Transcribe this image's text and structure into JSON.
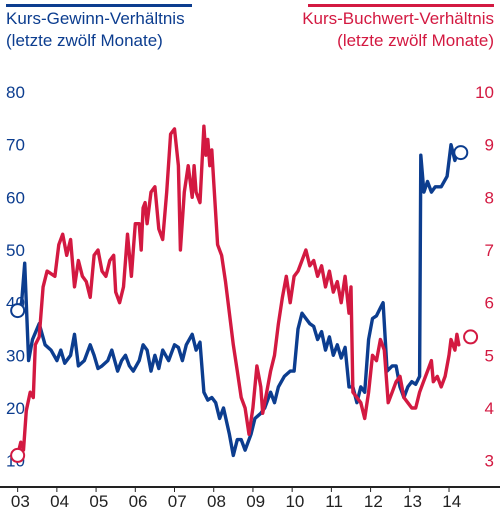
{
  "chart_data": {
    "type": "line",
    "left_title": [
      "Kurs-Gewinn-Verhältnis",
      "(letzte zwölf Monate)"
    ],
    "right_title": [
      "Kurs-Buchwert-Verhältnis",
      "(letzte zwölf Monate)"
    ],
    "colors": {
      "left": "#0c3d8f",
      "right": "#d31941",
      "axis": "#222222"
    },
    "x_tick_labels": [
      "03",
      "04",
      "05",
      "06",
      "07",
      "08",
      "09",
      "10",
      "11",
      "12",
      "13",
      "14"
    ],
    "left_axis": {
      "ticks": [
        10,
        20,
        30,
        40,
        50,
        60,
        70,
        80
      ],
      "ylim": [
        5,
        80
      ]
    },
    "right_axis": {
      "ticks": [
        3,
        4,
        5,
        6,
        7,
        8,
        9,
        10
      ],
      "ylim": [
        2.5,
        10
      ]
    },
    "xlim": [
      2002.55,
      2015.3
    ],
    "series": [
      {
        "name": "Kurs-Gewinn-Verhältnis",
        "axis": "left",
        "points": [
          [
            2003.0,
            38.5
          ],
          [
            2003.1,
            40
          ],
          [
            2003.18,
            47.5
          ],
          [
            2003.28,
            29
          ],
          [
            2003.38,
            33
          ],
          [
            2003.55,
            36
          ],
          [
            2003.7,
            32
          ],
          [
            2003.85,
            31
          ],
          [
            2004.0,
            29
          ],
          [
            2004.1,
            31
          ],
          [
            2004.2,
            28.5
          ],
          [
            2004.35,
            30
          ],
          [
            2004.45,
            34
          ],
          [
            2004.55,
            28
          ],
          [
            2004.7,
            29
          ],
          [
            2004.85,
            32
          ],
          [
            2004.95,
            30
          ],
          [
            2005.05,
            27.5
          ],
          [
            2005.15,
            28
          ],
          [
            2005.3,
            29
          ],
          [
            2005.4,
            31
          ],
          [
            2005.55,
            27
          ],
          [
            2005.65,
            29
          ],
          [
            2005.75,
            30
          ],
          [
            2005.85,
            28
          ],
          [
            2005.95,
            27
          ],
          [
            2006.1,
            29
          ],
          [
            2006.2,
            32
          ],
          [
            2006.3,
            31
          ],
          [
            2006.4,
            27
          ],
          [
            2006.5,
            30
          ],
          [
            2006.6,
            27.5
          ],
          [
            2006.7,
            31
          ],
          [
            2006.85,
            29
          ],
          [
            2007.0,
            32
          ],
          [
            2007.1,
            31.5
          ],
          [
            2007.2,
            29
          ],
          [
            2007.3,
            32
          ],
          [
            2007.45,
            34
          ],
          [
            2007.55,
            31
          ],
          [
            2007.65,
            32.5
          ],
          [
            2007.75,
            23
          ],
          [
            2007.85,
            21.5
          ],
          [
            2007.95,
            22
          ],
          [
            2008.05,
            21
          ],
          [
            2008.15,
            18
          ],
          [
            2008.25,
            20
          ],
          [
            2008.4,
            15
          ],
          [
            2008.5,
            11
          ],
          [
            2008.6,
            14
          ],
          [
            2008.7,
            14
          ],
          [
            2008.8,
            12
          ],
          [
            2008.95,
            15
          ],
          [
            2009.05,
            18
          ],
          [
            2009.2,
            19
          ],
          [
            2009.3,
            20
          ],
          [
            2009.45,
            23
          ],
          [
            2009.55,
            21
          ],
          [
            2009.65,
            24
          ],
          [
            2009.8,
            26
          ],
          [
            2009.95,
            27
          ],
          [
            2010.05,
            27
          ],
          [
            2010.15,
            35
          ],
          [
            2010.25,
            38
          ],
          [
            2010.35,
            37
          ],
          [
            2010.45,
            36
          ],
          [
            2010.55,
            35.5
          ],
          [
            2010.65,
            33
          ],
          [
            2010.75,
            34.5
          ],
          [
            2010.85,
            31
          ],
          [
            2010.95,
            33.5
          ],
          [
            2011.05,
            30
          ],
          [
            2011.15,
            32
          ],
          [
            2011.25,
            29.5
          ],
          [
            2011.35,
            31.5
          ],
          [
            2011.45,
            24
          ],
          [
            2011.55,
            24
          ],
          [
            2011.65,
            21
          ],
          [
            2011.75,
            24
          ],
          [
            2011.85,
            23
          ],
          [
            2011.95,
            33
          ],
          [
            2012.05,
            37
          ],
          [
            2012.15,
            37.5
          ],
          [
            2012.25,
            39
          ],
          [
            2012.32,
            40
          ],
          [
            2012.42,
            27
          ],
          [
            2012.55,
            28
          ],
          [
            2012.65,
            28
          ],
          [
            2012.75,
            24
          ],
          [
            2012.85,
            22
          ],
          [
            2012.95,
            24
          ],
          [
            2013.05,
            25
          ],
          [
            2013.15,
            24.5
          ],
          [
            2013.25,
            26
          ],
          [
            2013.28,
            68
          ],
          [
            2013.36,
            61
          ],
          [
            2013.45,
            63
          ],
          [
            2013.55,
            61
          ],
          [
            2013.65,
            62
          ],
          [
            2013.8,
            62
          ],
          [
            2013.95,
            64
          ],
          [
            2014.05,
            70
          ],
          [
            2014.15,
            67
          ],
          [
            2014.2,
            68.5
          ],
          [
            2014.25,
            68
          ]
        ],
        "end_marker": [
          2014.3,
          68.5
        ],
        "start_marker": [
          2003.0,
          38.5
        ]
      },
      {
        "name": "Kurs-Buchwert-Verhältnis",
        "axis": "right",
        "points": [
          [
            2003.0,
            3.1
          ],
          [
            2003.08,
            3.35
          ],
          [
            2003.15,
            3.2
          ],
          [
            2003.22,
            3.95
          ],
          [
            2003.32,
            4.3
          ],
          [
            2003.4,
            4.2
          ],
          [
            2003.45,
            5.2
          ],
          [
            2003.55,
            5.35
          ],
          [
            2003.65,
            6.3
          ],
          [
            2003.75,
            6.6
          ],
          [
            2003.85,
            6.55
          ],
          [
            2003.95,
            6.5
          ],
          [
            2004.05,
            7.1
          ],
          [
            2004.15,
            7.3
          ],
          [
            2004.25,
            6.9
          ],
          [
            2004.35,
            7.2
          ],
          [
            2004.45,
            6.3
          ],
          [
            2004.55,
            6.8
          ],
          [
            2004.65,
            6.5
          ],
          [
            2004.75,
            6.4
          ],
          [
            2004.85,
            6.1
          ],
          [
            2004.95,
            6.9
          ],
          [
            2005.05,
            7.0
          ],
          [
            2005.15,
            6.6
          ],
          [
            2005.25,
            6.5
          ],
          [
            2005.35,
            6.8
          ],
          [
            2005.45,
            6.9
          ],
          [
            2005.5,
            6.2
          ],
          [
            2005.6,
            6.0
          ],
          [
            2005.7,
            6.3
          ],
          [
            2005.8,
            7.3
          ],
          [
            2005.9,
            6.5
          ],
          [
            2005.95,
            7.0
          ],
          [
            2006.0,
            7.5
          ],
          [
            2006.1,
            7.5
          ],
          [
            2006.15,
            7.0
          ],
          [
            2006.2,
            7.8
          ],
          [
            2006.25,
            7.9
          ],
          [
            2006.3,
            7.5
          ],
          [
            2006.4,
            8.1
          ],
          [
            2006.5,
            8.2
          ],
          [
            2006.6,
            7.4
          ],
          [
            2006.7,
            7.2
          ],
          [
            2006.8,
            8.1
          ],
          [
            2006.9,
            9.2
          ],
          [
            2007.0,
            9.3
          ],
          [
            2007.1,
            8.6
          ],
          [
            2007.15,
            7.0
          ],
          [
            2007.25,
            8.1
          ],
          [
            2007.35,
            8.6
          ],
          [
            2007.45,
            8.0
          ],
          [
            2007.5,
            8.6
          ],
          [
            2007.55,
            8.1
          ],
          [
            2007.65,
            7.9
          ],
          [
            2007.75,
            9.35
          ],
          [
            2007.8,
            8.8
          ],
          [
            2007.85,
            9.1
          ],
          [
            2007.9,
            8.6
          ],
          [
            2007.95,
            8.9
          ],
          [
            2008.0,
            8.3
          ],
          [
            2008.1,
            7.1
          ],
          [
            2008.2,
            6.9
          ],
          [
            2008.3,
            6.4
          ],
          [
            2008.4,
            5.8
          ],
          [
            2008.5,
            5.2
          ],
          [
            2008.6,
            4.7
          ],
          [
            2008.7,
            4.2
          ],
          [
            2008.8,
            4.0
          ],
          [
            2008.9,
            3.5
          ],
          [
            2009.0,
            4.0
          ],
          [
            2009.1,
            4.8
          ],
          [
            2009.2,
            4.4
          ],
          [
            2009.25,
            3.9
          ],
          [
            2009.35,
            4.3
          ],
          [
            2009.45,
            4.7
          ],
          [
            2009.55,
            5.0
          ],
          [
            2009.65,
            5.6
          ],
          [
            2009.75,
            6.1
          ],
          [
            2009.85,
            6.5
          ],
          [
            2009.95,
            6.0
          ],
          [
            2010.05,
            6.5
          ],
          [
            2010.15,
            6.6
          ],
          [
            2010.25,
            6.8
          ],
          [
            2010.35,
            7.0
          ],
          [
            2010.45,
            6.7
          ],
          [
            2010.55,
            6.8
          ],
          [
            2010.65,
            6.5
          ],
          [
            2010.75,
            6.7
          ],
          [
            2010.85,
            6.3
          ],
          [
            2010.95,
            6.6
          ],
          [
            2011.05,
            6.2
          ],
          [
            2011.15,
            6.4
          ],
          [
            2011.25,
            6.0
          ],
          [
            2011.35,
            6.5
          ],
          [
            2011.45,
            5.8
          ],
          [
            2011.5,
            6.3
          ],
          [
            2011.55,
            4.3
          ],
          [
            2011.65,
            4.2
          ],
          [
            2011.75,
            4.1
          ],
          [
            2011.85,
            3.8
          ],
          [
            2011.95,
            4.3
          ],
          [
            2012.05,
            5.0
          ],
          [
            2012.15,
            4.9
          ],
          [
            2012.25,
            5.3
          ],
          [
            2012.35,
            5.1
          ],
          [
            2012.45,
            4.1
          ],
          [
            2012.55,
            4.3
          ],
          [
            2012.65,
            4.5
          ],
          [
            2012.75,
            4.6
          ],
          [
            2012.85,
            4.2
          ],
          [
            2012.95,
            4.1
          ],
          [
            2013.05,
            4.0
          ],
          [
            2013.15,
            4.0
          ],
          [
            2013.25,
            4.3
          ],
          [
            2013.35,
            4.5
          ],
          [
            2013.45,
            4.7
          ],
          [
            2013.55,
            4.9
          ],
          [
            2013.6,
            4.5
          ],
          [
            2013.7,
            4.6
          ],
          [
            2013.8,
            4.4
          ],
          [
            2013.9,
            4.6
          ],
          [
            2014.0,
            5.0
          ],
          [
            2014.05,
            5.3
          ],
          [
            2014.15,
            5.1
          ],
          [
            2014.2,
            5.4
          ],
          [
            2014.25,
            5.2
          ]
        ],
        "start_marker": [
          2003.0,
          3.1
        ],
        "end_marker": [
          2014.55,
          5.35
        ]
      }
    ]
  }
}
